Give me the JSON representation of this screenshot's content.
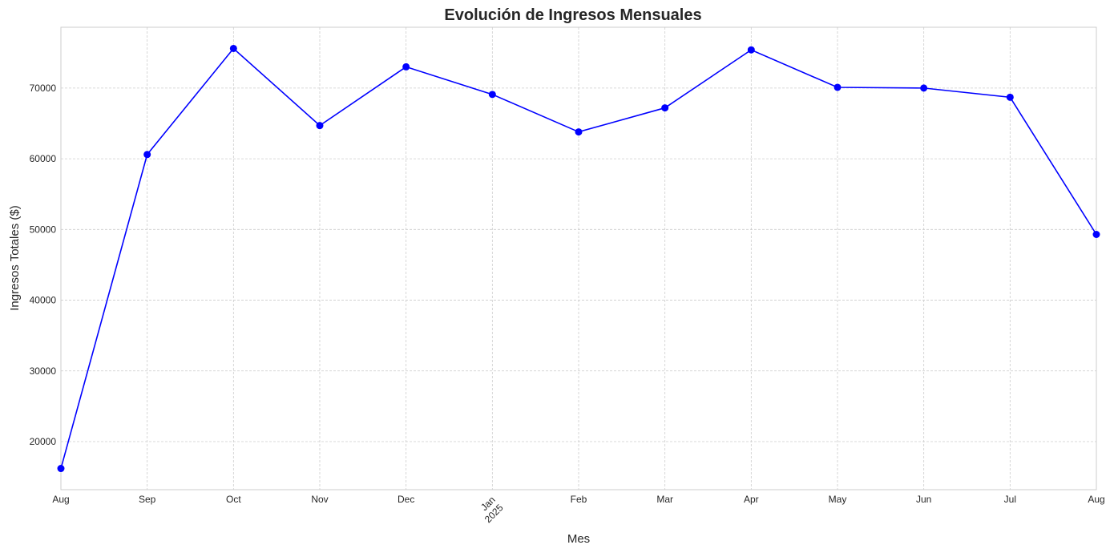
{
  "chart_data": {
    "type": "line",
    "title": "Evolución de Ingresos Mensuales",
    "xlabel": "Mes",
    "ylabel": "Ingresos Totales ($)",
    "x": [
      "2024-08",
      "2024-09",
      "2024-10",
      "2024-11",
      "2024-12",
      "2025-01",
      "2025-02",
      "2025-03",
      "2025-04",
      "2025-05",
      "2025-06",
      "2025-07",
      "2025-08"
    ],
    "x_tick_labels": [
      "Aug",
      "Sep",
      "Oct",
      "Nov",
      "Dec",
      "Jan",
      "Feb",
      "Mar",
      "Apr",
      "May",
      "Jun",
      "Jul",
      "Aug"
    ],
    "x_tick_year_label": {
      "index": 5,
      "text": "2025"
    },
    "y_ticks": [
      20000,
      30000,
      40000,
      50000,
      60000,
      70000
    ],
    "y_tick_labels": [
      "20000",
      "30000",
      "40000",
      "50000",
      "60000",
      "70000"
    ],
    "ylim": [
      13200,
      78600
    ],
    "series": [
      {
        "values": [
          16200,
          60600,
          75600,
          64700,
          73000,
          69100,
          63800,
          67200,
          75400,
          70100,
          70000,
          68700,
          49300
        ],
        "color": "#0000ff",
        "marker": "circle"
      }
    ],
    "grid": true
  }
}
